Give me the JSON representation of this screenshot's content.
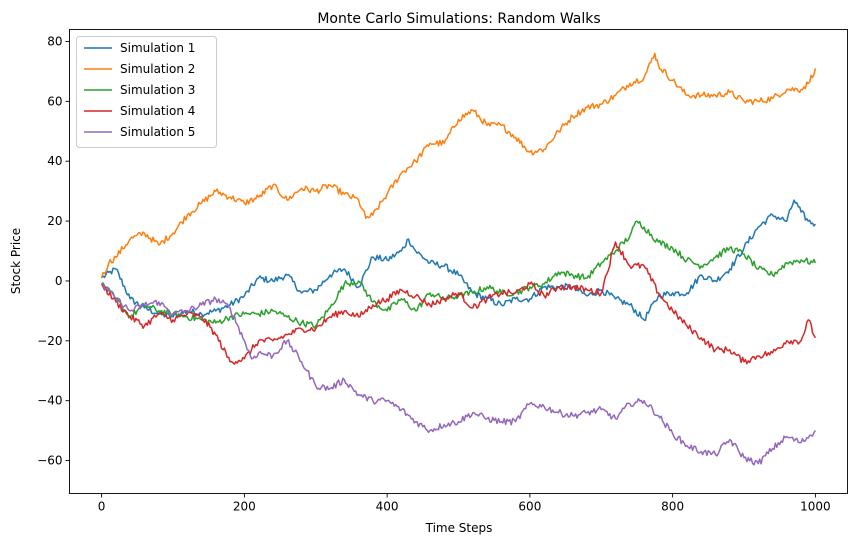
{
  "chart_data": {
    "type": "line",
    "title": "Monte Carlo Simulations: Random Walks",
    "xlabel": "Time Steps",
    "ylabel": "Stock Price",
    "xlim": [
      -45,
      1045
    ],
    "ylim": [
      -71,
      84
    ],
    "xticks": [
      0,
      200,
      400,
      600,
      800,
      1000
    ],
    "yticks": [
      -60,
      -40,
      -20,
      0,
      20,
      40,
      60,
      80
    ],
    "grid": false,
    "legend": "top-left",
    "series": [
      {
        "name": "Simulation 1",
        "color": "#1f77b4",
        "x": [
          0,
          20,
          40,
          60,
          80,
          100,
          120,
          140,
          160,
          180,
          200,
          220,
          240,
          260,
          280,
          300,
          320,
          340,
          360,
          380,
          400,
          420,
          430,
          440,
          460,
          480,
          500,
          520,
          540,
          560,
          580,
          600,
          620,
          640,
          660,
          680,
          700,
          720,
          740,
          760,
          780,
          800,
          820,
          840,
          860,
          880,
          900,
          920,
          940,
          960,
          970,
          980,
          990,
          1000
        ],
        "y": [
          1,
          4,
          -6,
          -9,
          -11,
          -12,
          -10,
          -11,
          -10,
          -8,
          -5,
          1,
          0,
          2,
          -4,
          -3,
          2,
          4,
          -2,
          8,
          7,
          10,
          14,
          10,
          6,
          5,
          2,
          -4,
          -6,
          -8,
          -6,
          -6,
          -2,
          -2,
          -2,
          -5,
          -3,
          -6,
          -8,
          -13,
          -5,
          -4,
          -4,
          2,
          0,
          4,
          11,
          18,
          22,
          20,
          27,
          23,
          20,
          19
        ]
      },
      {
        "name": "Simulation 2",
        "color": "#ff7f0e",
        "x": [
          0,
          10,
          20,
          40,
          60,
          80,
          100,
          120,
          140,
          160,
          180,
          200,
          220,
          240,
          260,
          280,
          300,
          320,
          340,
          360,
          370,
          380,
          400,
          420,
          440,
          460,
          480,
          500,
          520,
          540,
          560,
          580,
          600,
          620,
          640,
          660,
          680,
          700,
          720,
          740,
          760,
          775,
          780,
          800,
          820,
          840,
          860,
          880,
          900,
          920,
          940,
          960,
          980,
          990,
          1000
        ],
        "y": [
          1,
          6,
          8,
          14,
          16,
          12,
          16,
          22,
          26,
          30,
          28,
          26,
          28,
          32,
          27,
          31,
          30,
          32,
          29,
          27,
          21,
          22,
          29,
          36,
          40,
          46,
          46,
          54,
          57,
          52,
          52,
          48,
          43,
          44,
          50,
          55,
          58,
          59,
          62,
          66,
          68,
          76,
          72,
          67,
          62,
          62,
          62,
          63,
          60,
          60,
          61,
          64,
          64,
          66,
          71
        ]
      },
      {
        "name": "Simulation 3",
        "color": "#2ca02c",
        "x": [
          0,
          20,
          40,
          60,
          80,
          100,
          120,
          140,
          160,
          180,
          200,
          220,
          240,
          260,
          280,
          300,
          320,
          340,
          360,
          380,
          400,
          420,
          440,
          460,
          480,
          500,
          520,
          540,
          560,
          580,
          600,
          620,
          640,
          660,
          680,
          700,
          720,
          740,
          750,
          760,
          780,
          800,
          820,
          840,
          860,
          880,
          900,
          920,
          940,
          960,
          980,
          1000
        ],
        "y": [
          -1,
          -6,
          -12,
          -8,
          -10,
          -11,
          -12,
          -13,
          -14,
          -12,
          -11,
          -11,
          -10,
          -12,
          -14,
          -15,
          -9,
          -1,
          0,
          -7,
          -10,
          -6,
          -10,
          -4,
          -6,
          -5,
          -4,
          -2,
          -4,
          -4,
          -2,
          -1,
          3,
          2,
          1,
          6,
          10,
          15,
          20,
          18,
          13,
          11,
          7,
          5,
          8,
          11,
          9,
          4,
          2,
          6,
          7,
          6
        ]
      },
      {
        "name": "Simulation 4",
        "color": "#d62728",
        "x": [
          0,
          20,
          40,
          60,
          80,
          100,
          120,
          140,
          160,
          180,
          200,
          220,
          240,
          260,
          280,
          300,
          320,
          340,
          360,
          380,
          400,
          420,
          440,
          460,
          480,
          500,
          520,
          540,
          560,
          580,
          600,
          620,
          640,
          660,
          680,
          700,
          720,
          740,
          760,
          780,
          800,
          820,
          840,
          860,
          880,
          900,
          920,
          940,
          960,
          980,
          990,
          1000
        ],
        "y": [
          -1,
          -7,
          -12,
          -15,
          -11,
          -13,
          -11,
          -12,
          -18,
          -27,
          -26,
          -20,
          -20,
          -18,
          -16,
          -16,
          -12,
          -10,
          -12,
          -8,
          -6,
          -3,
          -5,
          -8,
          -6,
          -4,
          -9,
          -6,
          -4,
          -4,
          -1,
          -5,
          -2,
          -2,
          -3,
          -4,
          13,
          5,
          5,
          -4,
          -10,
          -15,
          -19,
          -23,
          -23,
          -27,
          -25,
          -24,
          -20,
          -20,
          -13,
          -19
        ]
      },
      {
        "name": "Simulation 5",
        "color": "#9467bd",
        "x": [
          0,
          20,
          40,
          60,
          80,
          100,
          120,
          140,
          160,
          180,
          200,
          210,
          220,
          240,
          260,
          280,
          300,
          320,
          340,
          360,
          380,
          400,
          420,
          440,
          460,
          480,
          500,
          520,
          540,
          560,
          580,
          600,
          620,
          640,
          660,
          680,
          700,
          720,
          740,
          760,
          780,
          800,
          820,
          840,
          860,
          880,
          900,
          920,
          940,
          960,
          980,
          1000
        ],
        "y": [
          -1,
          -6,
          -10,
          -8,
          -7,
          -11,
          -10,
          -8,
          -6,
          -9,
          -20,
          -26,
          -24,
          -25,
          -20,
          -27,
          -35,
          -36,
          -33,
          -38,
          -40,
          -40,
          -43,
          -47,
          -50,
          -48,
          -47,
          -44,
          -46,
          -47,
          -47,
          -41,
          -42,
          -44,
          -45,
          -44,
          -43,
          -46,
          -41,
          -40,
          -45,
          -51,
          -55,
          -57,
          -58,
          -53,
          -59,
          -61,
          -56,
          -52,
          -54,
          -50
        ]
      }
    ]
  }
}
